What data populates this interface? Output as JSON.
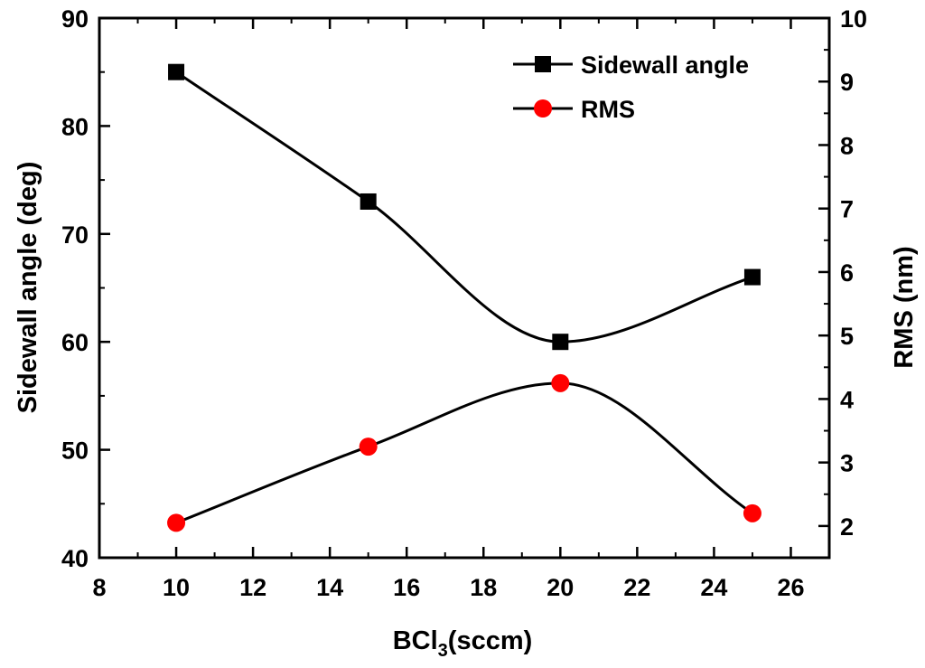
{
  "chart_data": {
    "type": "line",
    "xlabel": {
      "main": "BCl",
      "sub": "3",
      "rest": "(sccm)"
    },
    "ylabel_left": "Sidewall angle (deg)",
    "ylabel_right": "RMS (nm)",
    "xlim": [
      8,
      27
    ],
    "ylim_left": [
      40,
      90
    ],
    "ylim_right": [
      1.5,
      10
    ],
    "xticks": [
      "8",
      "10",
      "12",
      "14",
      "16",
      "18",
      "20",
      "22",
      "24",
      "26"
    ],
    "yticks_left": [
      "40",
      "50",
      "60",
      "70",
      "80",
      "90"
    ],
    "yticks_right": [
      "2",
      "3",
      "4",
      "5",
      "6",
      "7",
      "8",
      "9",
      "10"
    ],
    "legend_position": "top-right",
    "series": [
      {
        "name": "Sidewall angle",
        "axis": "left",
        "marker": "square",
        "color": "#000000",
        "x": [
          10,
          15,
          20,
          25
        ],
        "y": [
          85,
          73,
          60,
          66
        ]
      },
      {
        "name": "RMS",
        "axis": "right",
        "marker": "circle",
        "color": "#ff0000",
        "x": [
          10,
          15,
          20,
          25
        ],
        "y": [
          2.05,
          3.25,
          4.25,
          2.2
        ]
      }
    ]
  }
}
